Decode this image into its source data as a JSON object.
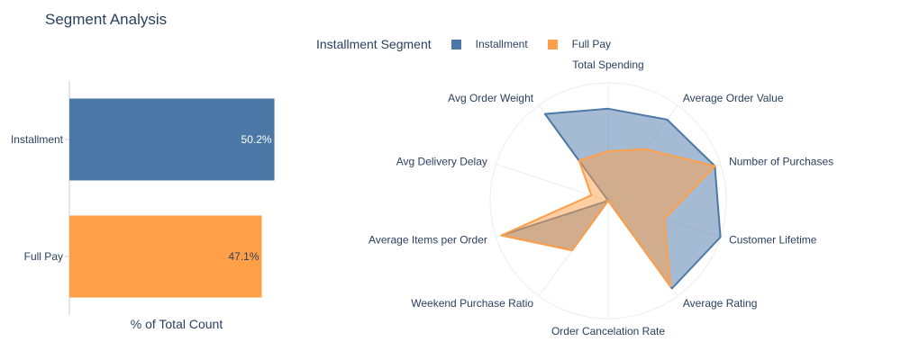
{
  "header": {
    "title": "Segment Analysis"
  },
  "legend": {
    "title": "Installment Segment",
    "items": [
      {
        "label": "Installment",
        "color": "#4c78a8"
      },
      {
        "label": "Full Pay",
        "color": "#ff9f48"
      }
    ]
  },
  "chart_data": [
    {
      "type": "bar",
      "orientation": "horizontal",
      "categories": [
        "Installment",
        "Full Pay"
      ],
      "values": [
        50.2,
        47.1
      ],
      "data_labels": [
        "50.2%",
        "47.1%"
      ],
      "colors": [
        "#4c78a8",
        "#ff9f48"
      ],
      "xlabel": "% of Total Count",
      "xlim": [
        0,
        52.5
      ],
      "grid": false
    },
    {
      "type": "radar",
      "axes": [
        "Total Spending",
        "Average Order Value",
        "Number of Purchases",
        "Customer Lifetime",
        "Average Rating",
        "Order Cancelation Rate",
        "Weekend Purchase Ratio",
        "Average Items per Order",
        "Avg Delivery Delay",
        "Avg Order Weight"
      ],
      "rlim": [
        0,
        1
      ],
      "series": [
        {
          "name": "Installment",
          "color": "#4c78a8",
          "values": [
            0.78,
            0.85,
            0.95,
            1.0,
            0.92,
            0.0,
            0.52,
            0.95,
            0.0,
            0.91
          ]
        },
        {
          "name": "Full Pay",
          "color": "#ff9f48",
          "values": [
            0.42,
            0.54,
            0.95,
            0.5,
            0.9,
            0.0,
            0.52,
            0.95,
            0.15,
            0.42
          ]
        }
      ]
    }
  ]
}
